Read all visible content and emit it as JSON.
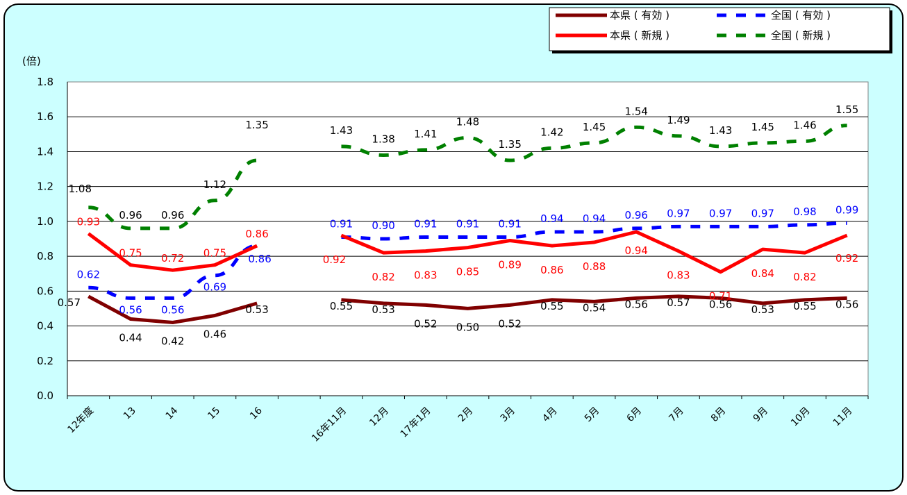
{
  "chart_data": {
    "type": "line",
    "unit_label": "(倍)",
    "ylim": [
      0,
      1.8
    ],
    "yticks": [
      "0.0",
      "0.2",
      "0.4",
      "0.6",
      "0.8",
      "1.0",
      "1.2",
      "1.4",
      "1.6",
      "1.8"
    ],
    "grid": true,
    "legend_position": "top-right",
    "categories": [
      "12年度",
      "13",
      "14",
      "15",
      "16",
      "",
      "16年11月",
      "12月",
      "17年1月",
      "2月",
      "3月",
      "4月",
      "5月",
      "6月",
      "7月",
      "8月",
      "9月",
      "10月",
      "11月"
    ],
    "series": [
      {
        "name": "本県 ( 有効 )",
        "color": "#800000",
        "style": "solid",
        "values": [
          0.57,
          0.44,
          0.42,
          0.46,
          0.53,
          null,
          0.55,
          0.53,
          0.52,
          0.5,
          0.52,
          0.55,
          0.54,
          0.56,
          0.57,
          0.56,
          0.53,
          0.55,
          0.56
        ]
      },
      {
        "name": "全国 ( 有効 )",
        "color": "#0000ff",
        "style": "dashed",
        "values": [
          0.62,
          0.56,
          0.56,
          0.69,
          0.86,
          null,
          0.91,
          0.9,
          0.91,
          0.91,
          0.91,
          0.94,
          0.94,
          0.96,
          0.97,
          0.97,
          0.97,
          0.98,
          0.99
        ]
      },
      {
        "name": "本県 ( 新規 )",
        "color": "#ff0000",
        "style": "solid",
        "values": [
          0.93,
          0.75,
          0.72,
          0.75,
          0.86,
          null,
          0.92,
          0.82,
          0.83,
          0.85,
          0.89,
          0.86,
          0.88,
          0.94,
          0.83,
          0.71,
          0.84,
          0.82,
          0.92
        ]
      },
      {
        "name": "全国 ( 新規 )",
        "color": "#008000",
        "style": "dashed",
        "values": [
          1.08,
          0.96,
          0.96,
          1.12,
          1.35,
          null,
          1.43,
          1.38,
          1.41,
          1.48,
          1.35,
          1.42,
          1.45,
          1.54,
          1.49,
          1.43,
          1.45,
          1.46,
          1.55
        ]
      }
    ]
  }
}
